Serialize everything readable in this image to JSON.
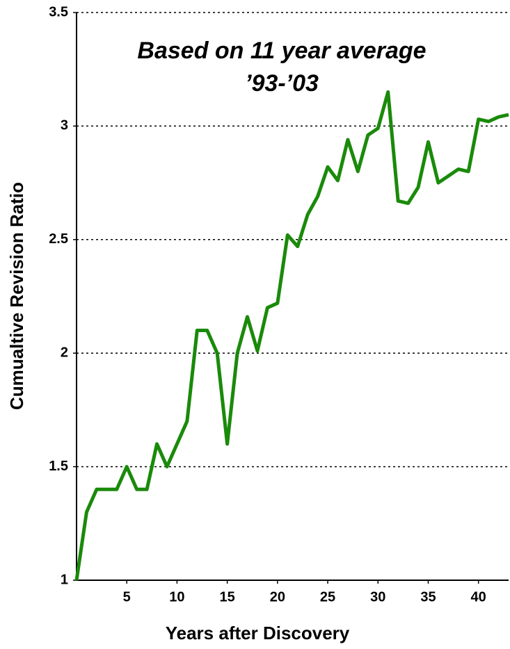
{
  "chart_data": {
    "type": "line",
    "annotation": [
      "Based on 11 year average",
      "’93-’03"
    ],
    "x_label": "Years after Discovery",
    "y_label": "Cumualtive Revision Ratio",
    "x": [
      0,
      1,
      2,
      3,
      4,
      5,
      6,
      7,
      8,
      9,
      10,
      11,
      12,
      13,
      14,
      15,
      16,
      17,
      18,
      19,
      20,
      21,
      22,
      23,
      24,
      25,
      26,
      27,
      28,
      29,
      30,
      31,
      32,
      33,
      34,
      35,
      36,
      37,
      38,
      39,
      40,
      41,
      42,
      43
    ],
    "series": [
      {
        "color": "#1a8a0a",
        "values": [
          1.0,
          1.3,
          1.4,
          1.4,
          1.4,
          1.5,
          1.4,
          1.4,
          1.6,
          1.5,
          1.6,
          1.7,
          2.1,
          2.1,
          2.0,
          1.6,
          2.0,
          2.16,
          2.01,
          2.2,
          2.22,
          2.52,
          2.47,
          2.61,
          2.69,
          2.82,
          2.76,
          2.94,
          2.8,
          2.96,
          2.99,
          3.15,
          2.67,
          2.66,
          2.73,
          2.93,
          2.75,
          2.78,
          2.81,
          2.8,
          3.03,
          3.02,
          3.04,
          3.05
        ]
      }
    ],
    "xlim": [
      0,
      43
    ],
    "xticks": [
      5,
      10,
      15,
      20,
      25,
      30,
      35,
      40
    ],
    "ylim": [
      1,
      3.5
    ],
    "yticks": [
      1,
      1.5,
      2,
      2.5,
      3,
      3.5
    ],
    "grid": true
  }
}
